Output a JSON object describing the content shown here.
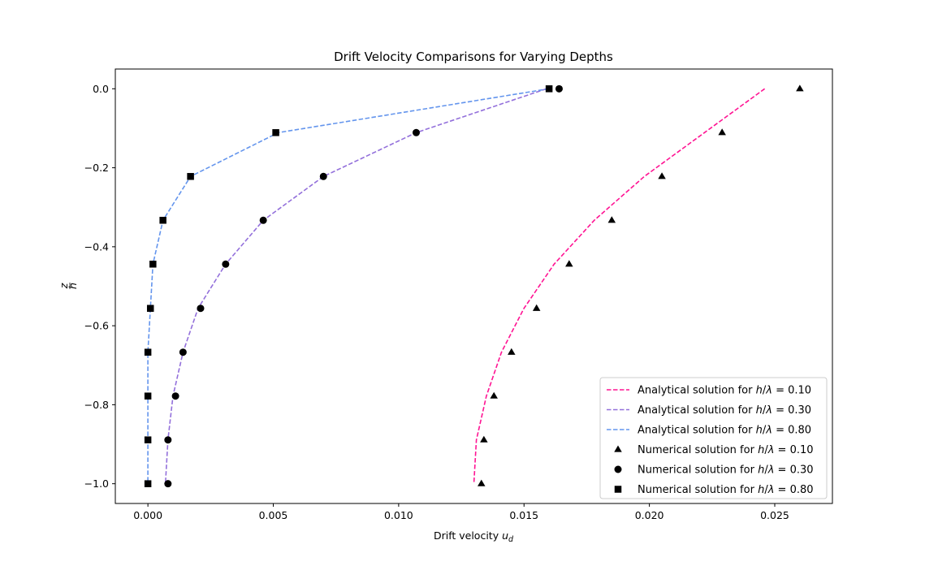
{
  "chart_data": {
    "type": "line",
    "title": "Drift Velocity Comparisons for Varying Depths",
    "xlabel_prefix": "Drift velocity ",
    "xlabel_var": "u",
    "xlabel_sub": "d",
    "ylabel_num": "z",
    "ylabel_den": "h",
    "xlim": [
      -0.0013,
      0.0273
    ],
    "ylim": [
      -1.05,
      0.05
    ],
    "xticks": [
      0.0,
      0.005,
      0.01,
      0.015,
      0.02,
      0.025
    ],
    "xtick_labels": [
      "0.000",
      "0.005",
      "0.010",
      "0.015",
      "0.020",
      "0.025"
    ],
    "yticks": [
      0.0,
      -0.2,
      -0.4,
      -0.6,
      -0.8,
      -1.0
    ],
    "ytick_labels": [
      "0.0",
      "−0.2",
      "−0.4",
      "−0.6",
      "−0.8",
      "−1.0"
    ],
    "grid": false,
    "legend_position": "lower-right",
    "z": [
      0.0,
      -0.111,
      -0.222,
      -0.333,
      -0.444,
      -0.556,
      -0.667,
      -0.778,
      -0.889,
      -1.0
    ],
    "series": [
      {
        "kind": "line",
        "name": "Analytical solution for h/λ = 0.10",
        "color": "#ff1493",
        "dash": true,
        "x": [
          0.0246,
          0.0222,
          0.0198,
          0.0178,
          0.0162,
          0.015,
          0.0141,
          0.0135,
          0.0131,
          0.013
        ]
      },
      {
        "kind": "line",
        "name": "Analytical solution for h/λ = 0.30",
        "color": "#9370db",
        "dash": true,
        "x": [
          0.0159,
          0.0107,
          0.007,
          0.0046,
          0.0031,
          0.002,
          0.0014,
          0.001,
          0.0008,
          0.0007
        ]
      },
      {
        "kind": "line",
        "name": "Analytical solution for h/λ = 0.80",
        "color": "#6495ed",
        "dash": true,
        "x": [
          0.016,
          0.0052,
          0.0017,
          0.0006,
          0.0002,
          0.0001,
          0.0,
          0.0,
          0.0,
          0.0
        ]
      },
      {
        "kind": "scatter",
        "marker": "triangle",
        "name": "Numerical solution for h/λ = 0.10",
        "color": "#000000",
        "x": [
          0.026,
          0.0229,
          0.0205,
          0.0185,
          0.0168,
          0.0155,
          0.0145,
          0.0138,
          0.0134,
          0.0133
        ]
      },
      {
        "kind": "scatter",
        "marker": "circle",
        "name": "Numerical solution for h/λ = 0.30",
        "color": "#000000",
        "x": [
          0.0164,
          0.0107,
          0.007,
          0.0046,
          0.0031,
          0.0021,
          0.0014,
          0.0011,
          0.0008,
          0.0008
        ]
      },
      {
        "kind": "scatter",
        "marker": "square",
        "name": "Numerical solution for h/λ = 0.80",
        "color": "#000000",
        "x": [
          0.016,
          0.0051,
          0.0017,
          0.0006,
          0.0002,
          0.0001,
          0.0,
          0.0,
          0.0,
          0.0
        ]
      }
    ],
    "legend": [
      {
        "prefix": "Analytical solution for ",
        "value": "0.10"
      },
      {
        "prefix": "Analytical solution for ",
        "value": "0.30"
      },
      {
        "prefix": "Analytical solution for ",
        "value": "0.80"
      },
      {
        "prefix": "Numerical solution for ",
        "value": "0.10"
      },
      {
        "prefix": "Numerical solution for ",
        "value": "0.30"
      },
      {
        "prefix": "Numerical solution for ",
        "value": "0.80"
      }
    ]
  }
}
